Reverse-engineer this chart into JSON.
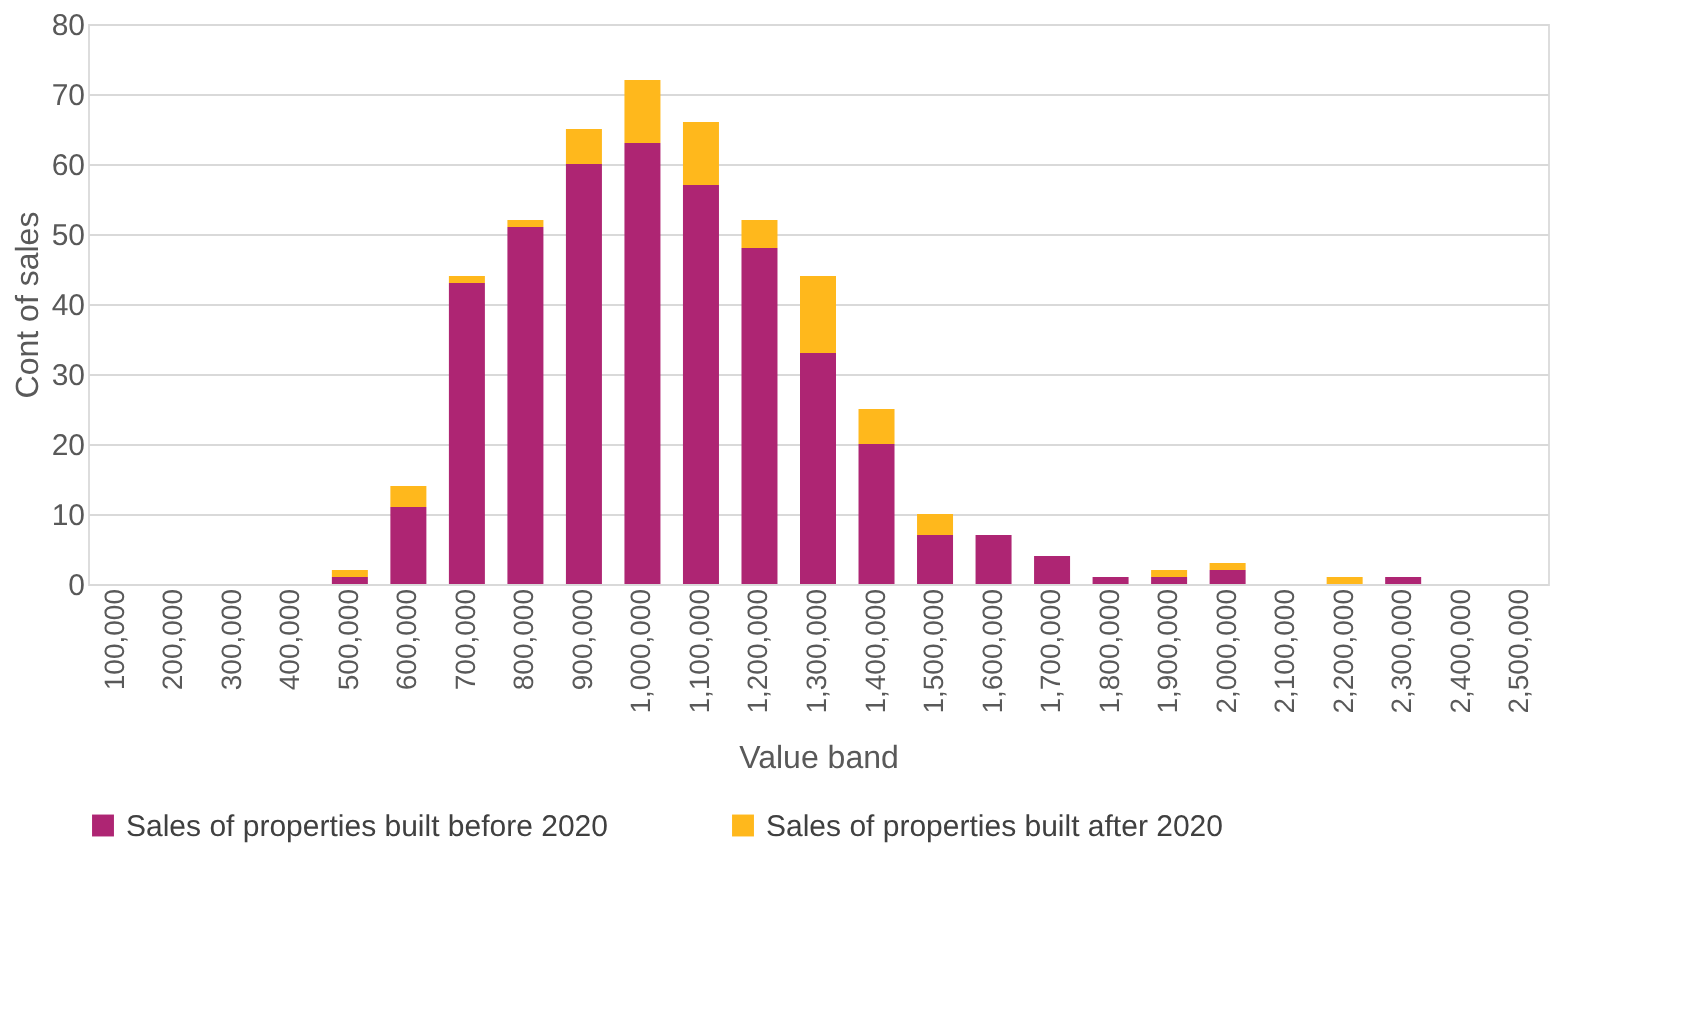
{
  "chart_data": {
    "type": "bar",
    "stacked": true,
    "xlabel": "Value band",
    "ylabel": "Cont of sales",
    "categories": [
      "100,000",
      "200,000",
      "300,000",
      "400,000",
      "500,000",
      "600,000",
      "700,000",
      "800,000",
      "900,000",
      "1,000,000",
      "1,100,000",
      "1,200,000",
      "1,300,000",
      "1,400,000",
      "1,500,000",
      "1,600,000",
      "1,700,000",
      "1,800,000",
      "1,900,000",
      "2,000,000",
      "2,100,000",
      "2,200,000",
      "2,300,000",
      "2,400,000",
      "2,500,000"
    ],
    "series": [
      {
        "name": "Sales of properties built before 2020",
        "color": "#ae2573",
        "values": [
          0,
          0,
          0,
          0,
          1,
          11,
          43,
          51,
          60,
          63,
          57,
          48,
          33,
          20,
          7,
          7,
          4,
          1,
          1,
          2,
          0,
          0,
          1,
          0,
          0
        ]
      },
      {
        "name": "Sales of properties built after 2020",
        "color": "#ffb81c",
        "values": [
          0,
          0,
          0,
          0,
          1,
          3,
          1,
          1,
          5,
          9,
          9,
          4,
          11,
          5,
          3,
          0,
          0,
          0,
          1,
          1,
          0,
          1,
          0,
          0,
          0
        ]
      }
    ],
    "ylim": [
      0,
      80
    ],
    "yticks": [
      0,
      10,
      20,
      30,
      40,
      50,
      60,
      70,
      80
    ],
    "grid": "y",
    "legend": "bottom"
  }
}
